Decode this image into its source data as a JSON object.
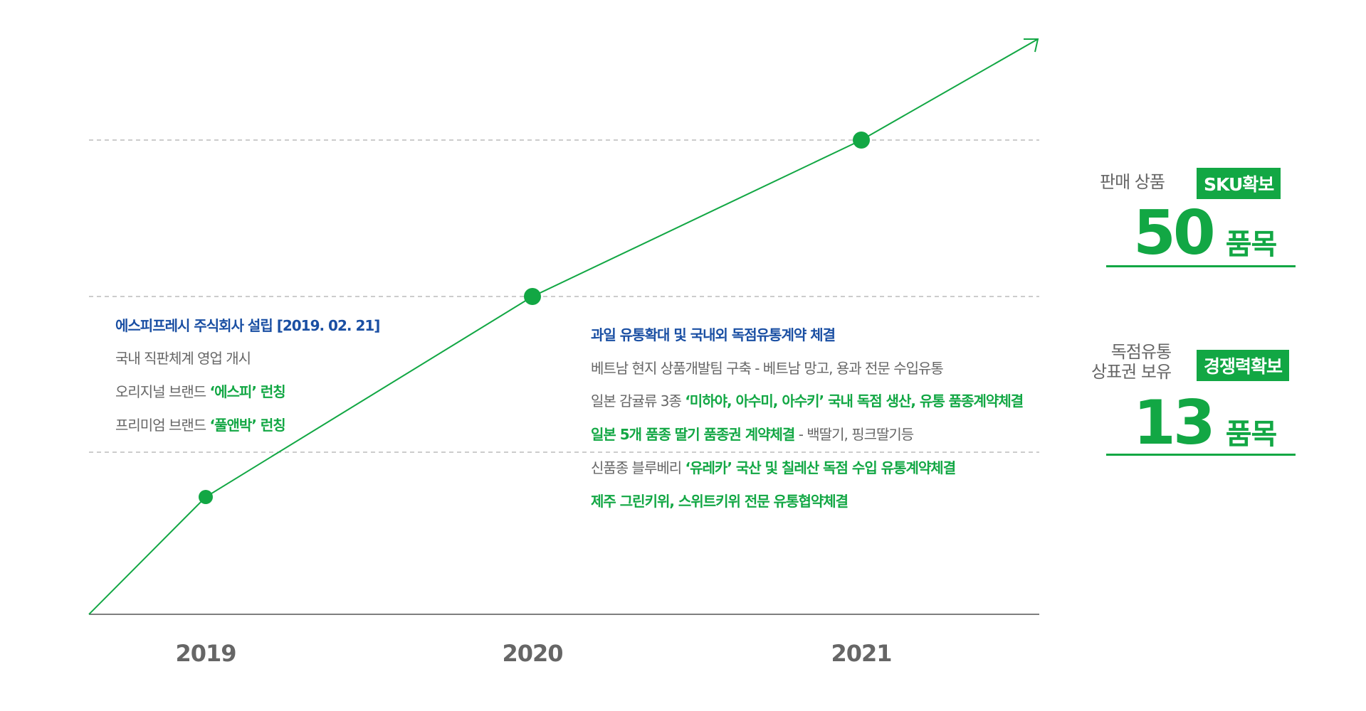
{
  "chart_data": {
    "type": "line",
    "x": [
      "2019",
      "2020",
      "2021"
    ],
    "grid": "dashed horizontal",
    "arrow": true
  },
  "years": [
    "2019",
    "2020",
    "2021"
  ],
  "milestones_2019": {
    "title": "에스피프레시 주식회사 설립 [2019. 02. 21]",
    "line1": "국내 직판체계 영업 개시",
    "line2_prefix": "오리지널 브랜드 ",
    "line2_highlight": "‘에스피’ 런칭",
    "line3_prefix": "프리미엄 브랜드 ",
    "line3_highlight": "‘풀앤박’ 런칭"
  },
  "milestones_2020": {
    "title": "과일 유통확대 및 국내외 독점유통계약 체결",
    "line1": "베트남 현지 상품개발팀 구축 - 베트남 망고, 용과 전문 수입유통",
    "line2_prefix": "일본 감귤류 3종 ",
    "line2_highlight": "‘미하야, 아수미, 아수키’ 국내 독점 생산, 유통 품종계약체결",
    "line3_highlight": "일본 5개 품종 딸기 품종권 계약체결",
    "line3_suffix": " - 백딸기, 핑크딸기등",
    "line4_prefix": "신품종 블루베리 ",
    "line4_highlight": "‘유레카’ 국산 및 칠레산 독점 수입 유통계약체결",
    "line5_highlight": "제주 그린키위, 스위트키위 전문 유통협약체결"
  },
  "stats": [
    {
      "label_line1": "판매 상품",
      "label_line2": "",
      "badge": "SKU확보",
      "value": "50",
      "unit": "품목"
    },
    {
      "label_line1": "독점유통",
      "label_line2": "상표권 보유",
      "badge": "경쟁력확보",
      "value": "13",
      "unit": "품목"
    }
  ],
  "colors": {
    "green": "#12a744",
    "blue": "#1a4fa3",
    "gray": "#666666",
    "dashed": "#bbbbbb",
    "axis": "#555555"
  }
}
